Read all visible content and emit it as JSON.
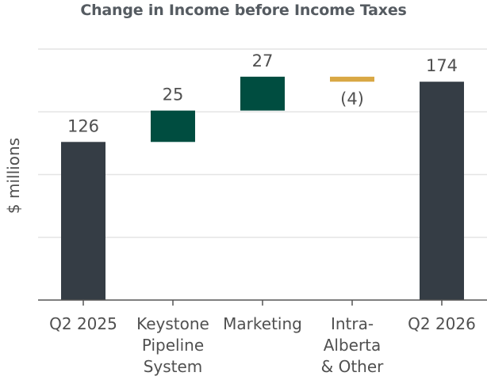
{
  "chart_data": {
    "type": "bar",
    "subtype": "waterfall",
    "title": "Change in Income before Income Taxes",
    "ylabel": "$ millions",
    "xlabel": "",
    "categories": [
      [
        "Q2 2025"
      ],
      [
        "Keystone",
        "Pipeline",
        "System"
      ],
      [
        "Marketing"
      ],
      [
        "Intra-",
        "Alberta",
        "& Other"
      ],
      [
        "Q2 2026"
      ]
    ],
    "bars": [
      {
        "kind": "total",
        "start": 0,
        "end": 126,
        "label": "126",
        "color": "#353d45"
      },
      {
        "kind": "increase",
        "start": 126,
        "end": 151,
        "label": "25",
        "color": "#004d40"
      },
      {
        "kind": "increase",
        "start": 151,
        "end": 178,
        "label": "27",
        "color": "#004d40"
      },
      {
        "kind": "decrease",
        "start": 178,
        "end": 174,
        "label": "(4)",
        "color": "#d9a845"
      },
      {
        "kind": "total",
        "start": 0,
        "end": 174,
        "label": "174",
        "color": "#353d45"
      }
    ],
    "ylim": [
      0,
      200
    ],
    "yticks": [
      0,
      50,
      100,
      150,
      200
    ],
    "ytick_labels_shown": false,
    "grid": true,
    "legend": "none"
  }
}
